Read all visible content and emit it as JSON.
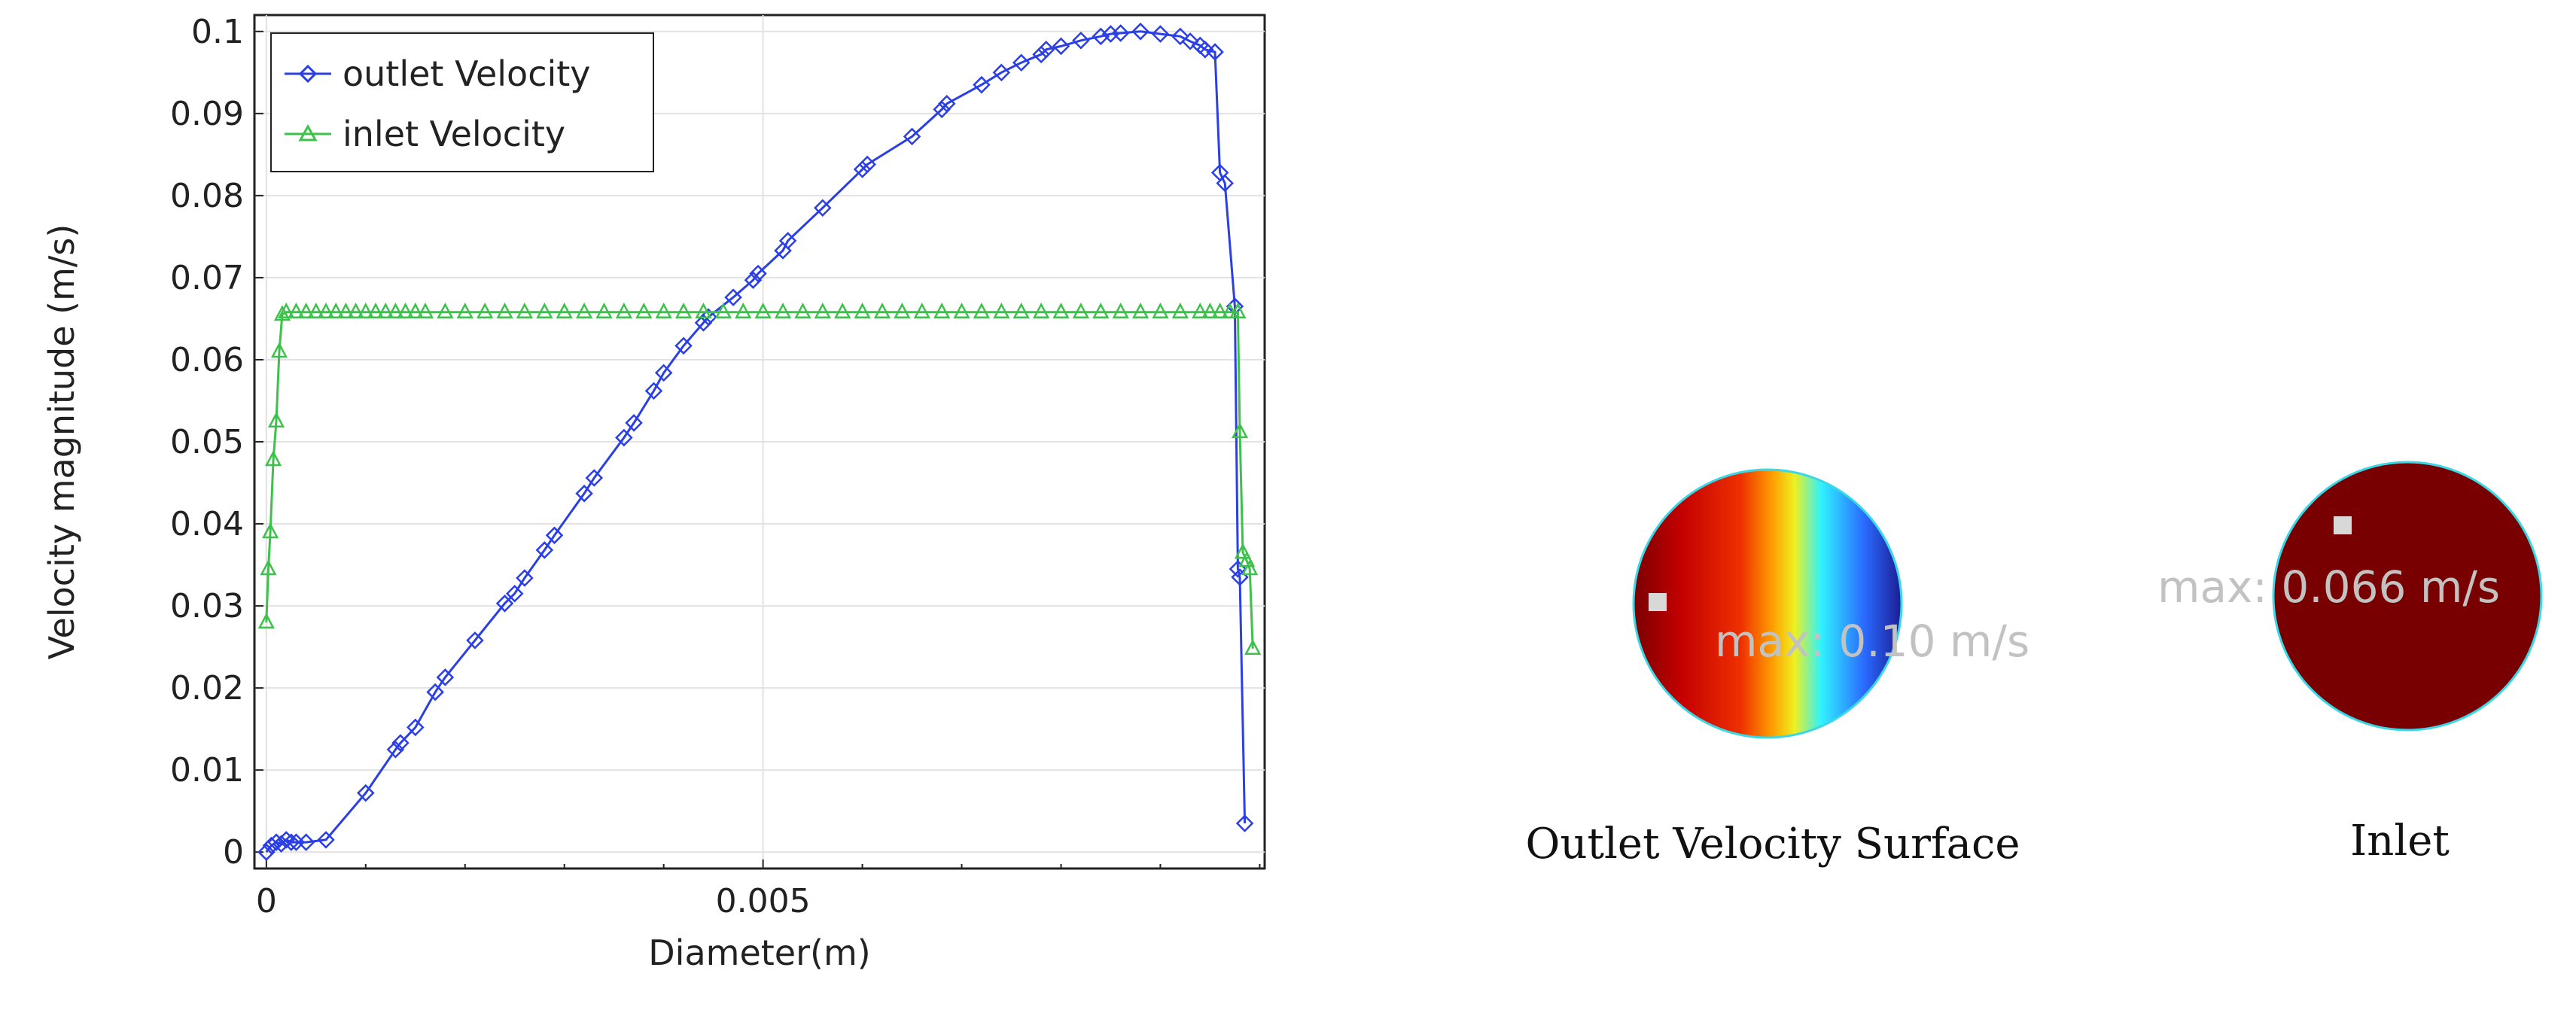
{
  "chart_data": {
    "type": "line",
    "xlabel": "Diameter(m)",
    "ylabel": "Velocity magnitude (m/s)",
    "xlim": [
      -0.00012,
      0.01005
    ],
    "ylim": [
      -0.002,
      0.102
    ],
    "xticks": [
      0,
      0.005
    ],
    "xtick_labels": [
      "0",
      "0.005"
    ],
    "yticks": [
      0,
      0.01,
      0.02,
      0.03,
      0.04,
      0.05,
      0.06,
      0.07,
      0.08,
      0.09,
      0.1
    ],
    "ytick_labels": [
      "0",
      "0.01",
      "0.02",
      "0.03",
      "0.04",
      "0.05",
      "0.06",
      "0.07",
      "0.08",
      "0.09",
      "0.1"
    ],
    "grid": true,
    "legend_position": "top-left",
    "series": [
      {
        "name": "outlet Velocity",
        "color": "#2b3fe6",
        "marker": "diamond",
        "x": [
          0,
          5e-05,
          0.0001,
          0.00015,
          0.0002,
          0.00025,
          0.0003,
          0.0004,
          0.0006,
          0.001,
          0.0013,
          0.00135,
          0.0015,
          0.0017,
          0.0018,
          0.0021,
          0.0024,
          0.0025,
          0.0026,
          0.0028,
          0.0029,
          0.0032,
          0.0033,
          0.0036,
          0.0037,
          0.0039,
          0.004,
          0.0042,
          0.0044,
          0.00445,
          0.0047,
          0.0049,
          0.00495,
          0.0052,
          0.00525,
          0.0056,
          0.006,
          0.00605,
          0.0065,
          0.0068,
          0.00685,
          0.0072,
          0.0074,
          0.0076,
          0.0078,
          0.00785,
          0.008,
          0.0082,
          0.0084,
          0.0085,
          0.0086,
          0.0088,
          0.009,
          0.0092,
          0.0093,
          0.0094,
          0.00945,
          0.00955,
          0.0096,
          0.00965,
          0.00975,
          0.00978,
          0.0098,
          0.00985
        ],
        "y": [
          0,
          0.0008,
          0.0012,
          0.001,
          0.0015,
          0.0012,
          0.0012,
          0.0012,
          0.0015,
          0.0072,
          0.0125,
          0.0133,
          0.0152,
          0.0195,
          0.0213,
          0.0258,
          0.0303,
          0.0315,
          0.0334,
          0.0368,
          0.0386,
          0.0437,
          0.0456,
          0.0505,
          0.0523,
          0.0562,
          0.0584,
          0.0617,
          0.0645,
          0.0652,
          0.0676,
          0.0697,
          0.0705,
          0.0733,
          0.0745,
          0.0785,
          0.0832,
          0.0838,
          0.0872,
          0.0905,
          0.0912,
          0.0935,
          0.095,
          0.0962,
          0.0972,
          0.0978,
          0.0982,
          0.0989,
          0.0994,
          0.0997,
          0.0998,
          0.1,
          0.0997,
          0.0994,
          0.0988,
          0.0983,
          0.0978,
          0.0975,
          0.0828,
          0.0815,
          0.0665,
          0.0345,
          0.0335,
          0.0035
        ]
      },
      {
        "name": "inlet Velocity",
        "color": "#3cc14a",
        "marker": "triangle",
        "x": [
          0,
          2e-05,
          4e-05,
          7e-05,
          0.0001,
          0.00013,
          0.00016,
          0.0002,
          0.0003,
          0.0004,
          0.0005,
          0.0006,
          0.0007,
          0.0008,
          0.0009,
          0.001,
          0.0011,
          0.0012,
          0.0013,
          0.0014,
          0.0015,
          0.0016,
          0.0018,
          0.002,
          0.0022,
          0.0024,
          0.0026,
          0.0028,
          0.003,
          0.0032,
          0.0034,
          0.0036,
          0.0038,
          0.004,
          0.0042,
          0.0044,
          0.0046,
          0.0048,
          0.005,
          0.0052,
          0.0054,
          0.0056,
          0.0058,
          0.006,
          0.0062,
          0.0064,
          0.0066,
          0.0068,
          0.007,
          0.0072,
          0.0074,
          0.0076,
          0.0078,
          0.008,
          0.0082,
          0.0084,
          0.0086,
          0.0088,
          0.009,
          0.0092,
          0.0094,
          0.0095,
          0.0096,
          0.0097,
          0.00978,
          0.0098,
          0.00983,
          0.00987,
          0.0099,
          0.00993
        ],
        "y": [
          0.028,
          0.0345,
          0.039,
          0.0478,
          0.0525,
          0.061,
          0.0655,
          0.0658,
          0.0658,
          0.0658,
          0.0658,
          0.0658,
          0.0658,
          0.0658,
          0.0658,
          0.0658,
          0.0658,
          0.0658,
          0.0658,
          0.0658,
          0.0658,
          0.0658,
          0.0658,
          0.0658,
          0.0658,
          0.0658,
          0.0658,
          0.0658,
          0.0658,
          0.0658,
          0.0658,
          0.0658,
          0.0658,
          0.0658,
          0.0658,
          0.0658,
          0.0658,
          0.0658,
          0.0658,
          0.0658,
          0.0658,
          0.0658,
          0.0658,
          0.0658,
          0.0658,
          0.0658,
          0.0658,
          0.0658,
          0.0658,
          0.0658,
          0.0658,
          0.0658,
          0.0658,
          0.0658,
          0.0658,
          0.0658,
          0.0658,
          0.0658,
          0.0658,
          0.0658,
          0.0658,
          0.0658,
          0.0658,
          0.0658,
          0.0658,
          0.0512,
          0.0365,
          0.0355,
          0.0345,
          0.0248
        ]
      }
    ]
  },
  "surfaces": [
    {
      "caption": "Outlet Velocity Surface",
      "max_label": "max: 0.10 m/s",
      "max_value": 0.1,
      "unit": "m/s",
      "colormap": [
        "#7a0000",
        "#e81900",
        "#ff9a00",
        "#f0f020",
        "#2ff2ff",
        "#2a6bff",
        "#1f1f9e"
      ]
    },
    {
      "caption": "Inlet",
      "max_label": "max: 0.066 m/s",
      "max_value": 0.066,
      "unit": "m/s",
      "fill": "#780000"
    }
  ]
}
